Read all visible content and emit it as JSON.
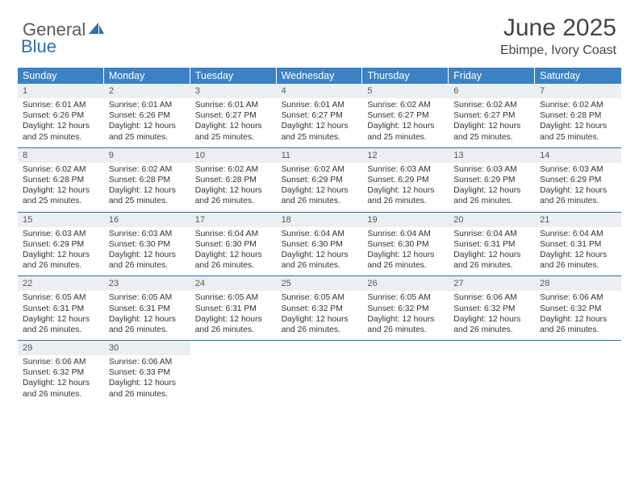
{
  "brand": {
    "part1": "General",
    "part2": "Blue"
  },
  "title": "June 2025",
  "subtitle": "Ebimpe, Ivory Coast",
  "colors": {
    "header_bg": "#3b82c4",
    "header_text": "#ffffff",
    "daynum_bg": "#eceff1",
    "row_border": "#2f6fa8",
    "brand_gray": "#5a5a5a",
    "brand_blue": "#2f6fa8",
    "text": "#333333",
    "bg": "#ffffff"
  },
  "typography": {
    "title_fontsize": 30,
    "subtitle_fontsize": 16,
    "dayname_fontsize": 12.5,
    "cell_fontsize": 10.3
  },
  "day_names": [
    "Sunday",
    "Monday",
    "Tuesday",
    "Wednesday",
    "Thursday",
    "Friday",
    "Saturday"
  ],
  "weeks": [
    [
      {
        "n": "1",
        "sr": "6:01 AM",
        "ss": "6:26 PM",
        "dl": "12 hours and 25 minutes."
      },
      {
        "n": "2",
        "sr": "6:01 AM",
        "ss": "6:26 PM",
        "dl": "12 hours and 25 minutes."
      },
      {
        "n": "3",
        "sr": "6:01 AM",
        "ss": "6:27 PM",
        "dl": "12 hours and 25 minutes."
      },
      {
        "n": "4",
        "sr": "6:01 AM",
        "ss": "6:27 PM",
        "dl": "12 hours and 25 minutes."
      },
      {
        "n": "5",
        "sr": "6:02 AM",
        "ss": "6:27 PM",
        "dl": "12 hours and 25 minutes."
      },
      {
        "n": "6",
        "sr": "6:02 AM",
        "ss": "6:27 PM",
        "dl": "12 hours and 25 minutes."
      },
      {
        "n": "7",
        "sr": "6:02 AM",
        "ss": "6:28 PM",
        "dl": "12 hours and 25 minutes."
      }
    ],
    [
      {
        "n": "8",
        "sr": "6:02 AM",
        "ss": "6:28 PM",
        "dl": "12 hours and 25 minutes."
      },
      {
        "n": "9",
        "sr": "6:02 AM",
        "ss": "6:28 PM",
        "dl": "12 hours and 25 minutes."
      },
      {
        "n": "10",
        "sr": "6:02 AM",
        "ss": "6:28 PM",
        "dl": "12 hours and 26 minutes."
      },
      {
        "n": "11",
        "sr": "6:02 AM",
        "ss": "6:29 PM",
        "dl": "12 hours and 26 minutes."
      },
      {
        "n": "12",
        "sr": "6:03 AM",
        "ss": "6:29 PM",
        "dl": "12 hours and 26 minutes."
      },
      {
        "n": "13",
        "sr": "6:03 AM",
        "ss": "6:29 PM",
        "dl": "12 hours and 26 minutes."
      },
      {
        "n": "14",
        "sr": "6:03 AM",
        "ss": "6:29 PM",
        "dl": "12 hours and 26 minutes."
      }
    ],
    [
      {
        "n": "15",
        "sr": "6:03 AM",
        "ss": "6:29 PM",
        "dl": "12 hours and 26 minutes."
      },
      {
        "n": "16",
        "sr": "6:03 AM",
        "ss": "6:30 PM",
        "dl": "12 hours and 26 minutes."
      },
      {
        "n": "17",
        "sr": "6:04 AM",
        "ss": "6:30 PM",
        "dl": "12 hours and 26 minutes."
      },
      {
        "n": "18",
        "sr": "6:04 AM",
        "ss": "6:30 PM",
        "dl": "12 hours and 26 minutes."
      },
      {
        "n": "19",
        "sr": "6:04 AM",
        "ss": "6:30 PM",
        "dl": "12 hours and 26 minutes."
      },
      {
        "n": "20",
        "sr": "6:04 AM",
        "ss": "6:31 PM",
        "dl": "12 hours and 26 minutes."
      },
      {
        "n": "21",
        "sr": "6:04 AM",
        "ss": "6:31 PM",
        "dl": "12 hours and 26 minutes."
      }
    ],
    [
      {
        "n": "22",
        "sr": "6:05 AM",
        "ss": "6:31 PM",
        "dl": "12 hours and 26 minutes."
      },
      {
        "n": "23",
        "sr": "6:05 AM",
        "ss": "6:31 PM",
        "dl": "12 hours and 26 minutes."
      },
      {
        "n": "24",
        "sr": "6:05 AM",
        "ss": "6:31 PM",
        "dl": "12 hours and 26 minutes."
      },
      {
        "n": "25",
        "sr": "6:05 AM",
        "ss": "6:32 PM",
        "dl": "12 hours and 26 minutes."
      },
      {
        "n": "26",
        "sr": "6:05 AM",
        "ss": "6:32 PM",
        "dl": "12 hours and 26 minutes."
      },
      {
        "n": "27",
        "sr": "6:06 AM",
        "ss": "6:32 PM",
        "dl": "12 hours and 26 minutes."
      },
      {
        "n": "28",
        "sr": "6:06 AM",
        "ss": "6:32 PM",
        "dl": "12 hours and 26 minutes."
      }
    ],
    [
      {
        "n": "29",
        "sr": "6:06 AM",
        "ss": "6:32 PM",
        "dl": "12 hours and 26 minutes."
      },
      {
        "n": "30",
        "sr": "6:06 AM",
        "ss": "6:33 PM",
        "dl": "12 hours and 26 minutes."
      },
      null,
      null,
      null,
      null,
      null
    ]
  ],
  "labels": {
    "sunrise": "Sunrise:",
    "sunset": "Sunset:",
    "daylight": "Daylight:"
  }
}
